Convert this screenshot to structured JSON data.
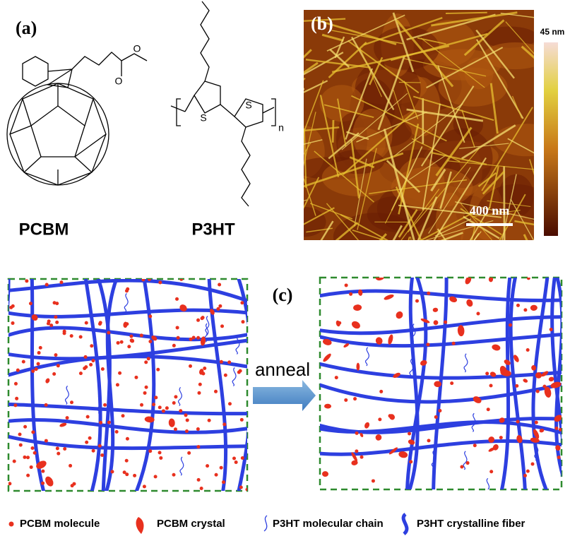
{
  "panel_a": {
    "label": "(a)",
    "pcbm": {
      "name": "PCBM",
      "atoms": [
        "O",
        "O"
      ]
    },
    "p3ht": {
      "name": "P3HT",
      "atoms": [
        "S",
        "S"
      ],
      "subscript": "n"
    }
  },
  "panel_b": {
    "label": "(b)",
    "colorbar_max": "45 nm",
    "scale_bar": "400 nm"
  },
  "panel_c": {
    "label": "(c)",
    "arrow_label": "anneal",
    "legend": [
      "PCBM molecule",
      "PCBM crystal",
      "P3HT molecular chain",
      "P3HT crystalline fiber"
    ]
  }
}
